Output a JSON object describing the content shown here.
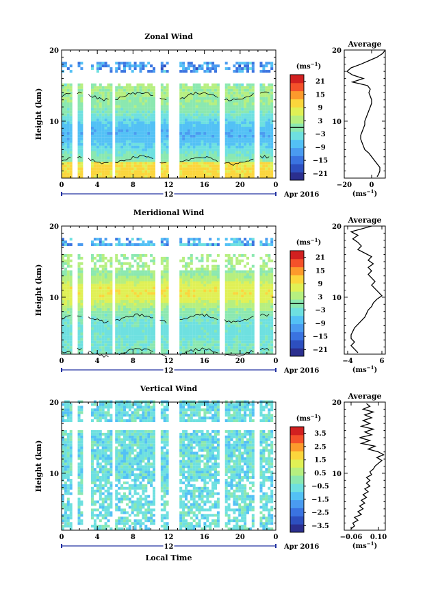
{
  "chart_data": [
    {
      "type": "heatmap",
      "title": "Zonal Wind",
      "ylabel": "Height (km)",
      "x_ticks": [
        "0",
        "4",
        "8",
        "12",
        "16",
        "20",
        "0"
      ],
      "xlim_hours": [
        0,
        24
      ],
      "ylim": [
        2,
        20
      ],
      "y_ticks": [
        "10",
        "20"
      ],
      "date_marker": "12",
      "month_label": "Apr 2016",
      "colorbar": {
        "unit": "(ms",
        "unit_sup": "−1",
        "unit_close": ")",
        "ticks": [
          "21",
          "15",
          "9",
          "3",
          "−3",
          "−9",
          "−15",
          "−21"
        ],
        "range": [
          -24,
          24
        ],
        "contour_at": 0
      },
      "profile": {
        "title": "Average",
        "xlabel": "(ms",
        "xlabel_sup": "−1",
        "xlabel_close": ")",
        "x_ticks": [
          "−20",
          "0"
        ],
        "y_ticks": [
          "10",
          "20"
        ],
        "xlim": [
          -20,
          10
        ],
        "points": [
          [
            4,
            2.2
          ],
          [
            5,
            2.5
          ],
          [
            6,
            3
          ],
          [
            6,
            3.5
          ],
          [
            4,
            4
          ],
          [
            2,
            4.5
          ],
          [
            0,
            5
          ],
          [
            -2,
            5.5
          ],
          [
            -5,
            6
          ],
          [
            -6,
            6.5
          ],
          [
            -7,
            7
          ],
          [
            -8,
            7.5
          ],
          [
            -8,
            8
          ],
          [
            -7,
            8.5
          ],
          [
            -6,
            9
          ],
          [
            -5,
            9.5
          ],
          [
            -5,
            10
          ],
          [
            -4,
            10.5
          ],
          [
            -3,
            11
          ],
          [
            -2,
            11.5
          ],
          [
            -1,
            12
          ],
          [
            0,
            12.5
          ],
          [
            0,
            13
          ],
          [
            -1,
            13.5
          ],
          [
            -2,
            14
          ],
          [
            -1,
            14.5
          ],
          [
            -3,
            15
          ],
          [
            -14,
            15.5
          ],
          [
            -6,
            16
          ],
          [
            -14,
            16.5
          ],
          [
            -18,
            17
          ],
          [
            -15,
            17.5
          ],
          [
            -8,
            18
          ],
          [
            -2,
            18.5
          ],
          [
            4,
            19
          ],
          [
            8,
            19.5
          ],
          [
            10,
            20
          ]
        ]
      }
    },
    {
      "type": "heatmap",
      "title": "Meridional Wind",
      "ylabel": "Height (km)",
      "x_ticks": [
        "0",
        "4",
        "8",
        "12",
        "16",
        "20",
        "0"
      ],
      "xlim_hours": [
        0,
        24
      ],
      "ylim": [
        2,
        20
      ],
      "y_ticks": [
        "10",
        "20"
      ],
      "date_marker": "12",
      "month_label": "Apr 2016",
      "colorbar": {
        "unit": "(ms",
        "unit_sup": "−1",
        "unit_close": ")",
        "ticks": [
          "21",
          "15",
          "9",
          "3",
          "−3",
          "−9",
          "−15",
          "−21"
        ],
        "range": [
          -24,
          24
        ],
        "contour_at": 0
      },
      "profile": {
        "title": "Average",
        "xlabel": "(ms",
        "xlabel_sup": "−1",
        "xlabel_close": ")",
        "x_ticks": [
          "−4",
          "6"
        ],
        "y_ticks": [
          "10",
          "20"
        ],
        "xlim": [
          -5,
          7
        ],
        "points": [
          [
            -1,
            2.2
          ],
          [
            -2,
            2.7
          ],
          [
            -3,
            3.2
          ],
          [
            -2,
            3.7
          ],
          [
            -3,
            4.2
          ],
          [
            -3,
            4.7
          ],
          [
            -2.5,
            5.2
          ],
          [
            -2,
            5.7
          ],
          [
            -1,
            6.2
          ],
          [
            0,
            6.7
          ],
          [
            1,
            7.2
          ],
          [
            1.5,
            7.7
          ],
          [
            2,
            8.2
          ],
          [
            3,
            8.7
          ],
          [
            3.5,
            9.2
          ],
          [
            4.5,
            9.7
          ],
          [
            6,
            10.2
          ],
          [
            5,
            10.7
          ],
          [
            4,
            11.2
          ],
          [
            3,
            11.7
          ],
          [
            4,
            12.2
          ],
          [
            3,
            12.7
          ],
          [
            2,
            13.2
          ],
          [
            3,
            13.7
          ],
          [
            2,
            14.2
          ],
          [
            3.5,
            14.7
          ],
          [
            2,
            15.2
          ],
          [
            3,
            15.7
          ],
          [
            1,
            16.2
          ],
          [
            -1,
            16.7
          ],
          [
            0,
            17.2
          ],
          [
            -1,
            17.7
          ],
          [
            -2.5,
            18.2
          ],
          [
            -1,
            18.7
          ],
          [
            -3,
            19.2
          ],
          [
            0,
            19.6
          ],
          [
            3,
            20
          ]
        ]
      }
    },
    {
      "type": "heatmap",
      "title": "Vertical Wind",
      "ylabel": "Height (km)",
      "xlabel": "Local Time",
      "x_ticks": [
        "0",
        "4",
        "8",
        "12",
        "16",
        "20",
        "0"
      ],
      "xlim_hours": [
        0,
        24
      ],
      "ylim": [
        2,
        20
      ],
      "y_ticks": [
        "10",
        "20"
      ],
      "date_marker": "12",
      "month_label": "Apr 2016",
      "colorbar": {
        "unit": "(ms",
        "unit_sup": "−1",
        "unit_close": ")",
        "ticks": [
          "3.5",
          "2.5",
          "1.5",
          "0.5",
          "−0.5",
          "−1.5",
          "−2.5",
          "−3.5"
        ],
        "range": [
          -4,
          4
        ]
      },
      "profile": {
        "title": "Average",
        "xlabel": "(ms",
        "xlabel_sup": "−1",
        "xlabel_close": ")",
        "x_ticks": [
          "−0.06",
          "0.10"
        ],
        "y_ticks": [
          "10",
          "20"
        ],
        "xlim": [
          -0.1,
          0.14
        ],
        "points": [
          [
            -0.06,
            2.2
          ],
          [
            -0.04,
            2.6
          ],
          [
            -0.05,
            3
          ],
          [
            -0.02,
            3.4
          ],
          [
            -0.04,
            3.8
          ],
          [
            0.0,
            4.2
          ],
          [
            -0.02,
            4.6
          ],
          [
            0.01,
            5
          ],
          [
            -0.01,
            5.4
          ],
          [
            0.02,
            5.8
          ],
          [
            0.0,
            6.2
          ],
          [
            0.03,
            6.6
          ],
          [
            0.01,
            7
          ],
          [
            0.04,
            7.4
          ],
          [
            0.02,
            7.8
          ],
          [
            0.05,
            8.2
          ],
          [
            0.03,
            8.6
          ],
          [
            0.05,
            9
          ],
          [
            0.03,
            9.4
          ],
          [
            0.06,
            9.8
          ],
          [
            0.05,
            10.2
          ],
          [
            0.07,
            10.6
          ],
          [
            0.08,
            11
          ],
          [
            0.1,
            11.4
          ],
          [
            0.12,
            11.8
          ],
          [
            0.09,
            12.2
          ],
          [
            0.13,
            12.6
          ],
          [
            0.1,
            13
          ],
          [
            0.04,
            13.4
          ],
          [
            0.08,
            13.8
          ],
          [
            0.0,
            14.2
          ],
          [
            0.05,
            14.6
          ],
          [
            -0.01,
            15
          ],
          [
            0.06,
            15.4
          ],
          [
            0.02,
            15.8
          ],
          [
            0.07,
            16.2
          ],
          [
            0.0,
            16.6
          ],
          [
            0.05,
            17
          ],
          [
            0.01,
            17.4
          ],
          [
            0.06,
            17.8
          ],
          [
            0.02,
            18.2
          ],
          [
            0.07,
            18.6
          ],
          [
            0.01,
            19
          ],
          [
            0.05,
            19.4
          ],
          [
            0.03,
            19.8
          ]
        ]
      }
    }
  ]
}
